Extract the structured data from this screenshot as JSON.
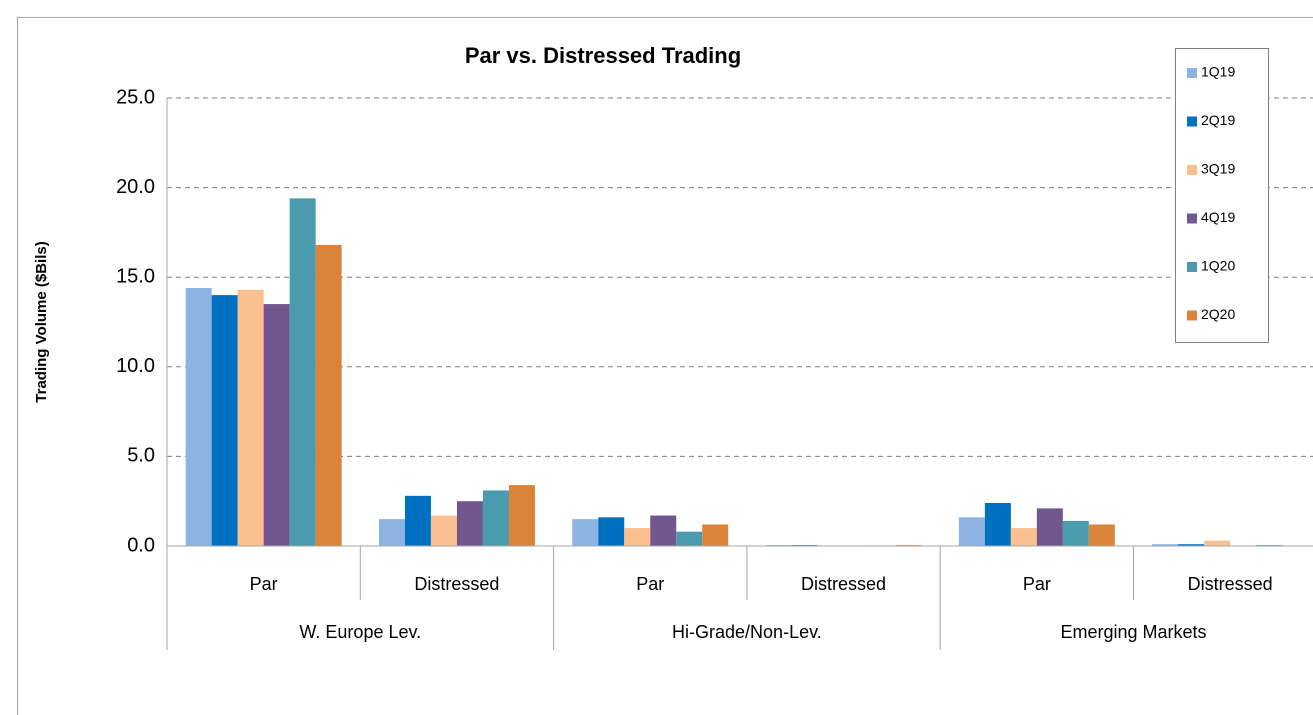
{
  "chart_data": {
    "type": "bar",
    "title": "Par vs. Distressed Trading",
    "y_label": "Trading Volume ($Bils)",
    "categories": [
      "Par",
      "Distressed",
      "Par",
      "Distressed",
      "Par",
      "Distressed"
    ],
    "groups": [
      "W. Europe Lev.",
      "Hi-Grade/Non-Lev.",
      "Emerging Markets"
    ],
    "series": [
      {
        "name": "1Q19",
        "color": "#8db3e2",
        "values": [
          14.4,
          1.5,
          1.5,
          0.05,
          1.6,
          0.1
        ]
      },
      {
        "name": "2Q19",
        "color": "#0070c0",
        "values": [
          14.0,
          2.8,
          1.6,
          0.05,
          2.4,
          0.1
        ]
      },
      {
        "name": "3Q19",
        "color": "#fac090",
        "values": [
          14.3,
          1.7,
          1.0,
          0.02,
          1.0,
          0.3
        ]
      },
      {
        "name": "4Q19",
        "color": "#72578f",
        "values": [
          13.5,
          2.5,
          1.7,
          0.02,
          2.1,
          0.02
        ]
      },
      {
        "name": "1Q20",
        "color": "#4a9bad",
        "values": [
          19.4,
          3.1,
          0.8,
          0.03,
          1.4,
          0.05
        ]
      },
      {
        "name": "2Q20",
        "color": "#d9833b",
        "values": [
          16.8,
          3.4,
          1.2,
          0.05,
          1.2,
          0.02
        ]
      }
    ],
    "ylim": [
      0,
      25
    ],
    "yticks": [
      {
        "value": 0,
        "label": "0.0"
      },
      {
        "value": 5,
        "label": "5.0"
      },
      {
        "value": 10,
        "label": "10.0"
      },
      {
        "value": 15,
        "label": "15.0"
      },
      {
        "value": 20,
        "label": "20.0"
      },
      {
        "value": 25,
        "label": "25.0"
      }
    ],
    "grid": true,
    "legend": "top-right"
  }
}
